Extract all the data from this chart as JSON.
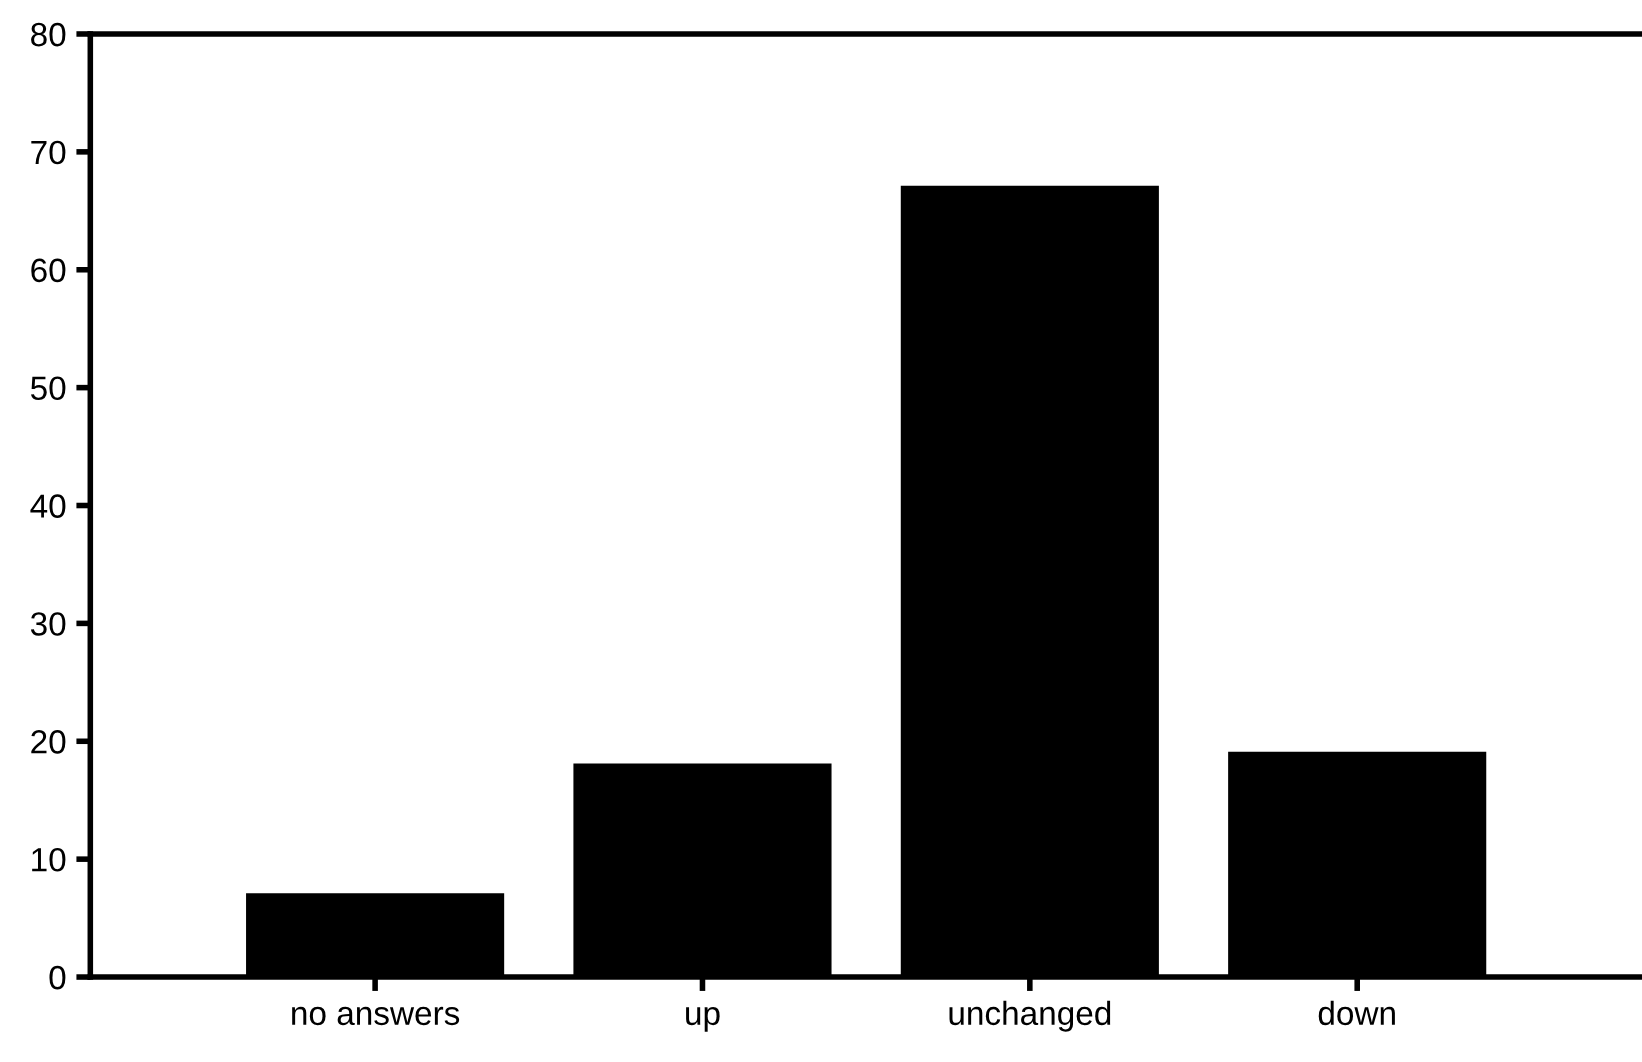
{
  "chart_data": {
    "type": "bar",
    "categories": [
      "no answers",
      "up",
      "unchanged",
      "down"
    ],
    "values": [
      7,
      18,
      67,
      19
    ],
    "color": "#000000",
    "ylim": [
      0,
      80
    ],
    "yticks": [
      0,
      10,
      20,
      30,
      40,
      50,
      60,
      70,
      80
    ],
    "grid": false,
    "legend": false
  }
}
